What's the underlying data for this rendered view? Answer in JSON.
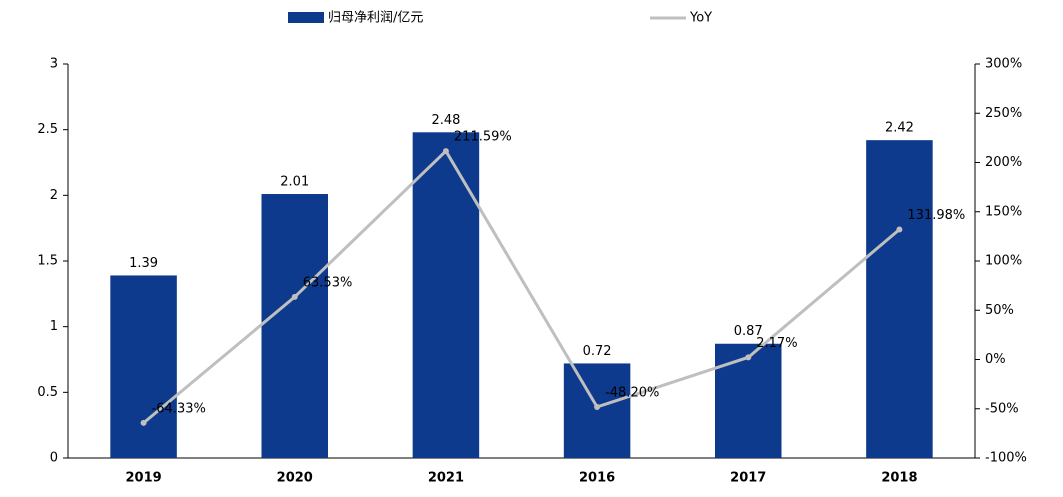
{
  "chart_data": {
    "type": "bar-line",
    "categories": [
      "2019",
      "2020",
      "2021",
      "2016",
      "2017",
      "2018"
    ],
    "series": [
      {
        "name": "归母净利润/亿元",
        "color": "#0d3a8c",
        "type": "bar",
        "values": [
          1.39,
          2.01,
          2.48,
          0.72,
          0.87,
          2.42
        ]
      },
      {
        "name": "YoY",
        "color": "#bfbfbf",
        "type": "line",
        "axis": "y2",
        "values": [
          -64.33,
          63.53,
          211.59,
          -48.2,
          2.17,
          131.98
        ],
        "value_labels": [
          "-64.33%",
          "63.53%",
          "211.59%",
          "-48.20%",
          "2.17%",
          "131.98%"
        ]
      }
    ],
    "ylim": [
      0,
      3
    ],
    "yticks": [
      0,
      0.5,
      1,
      1.5,
      2,
      2.5,
      3
    ],
    "y2lim": [
      -100,
      300
    ],
    "y2ticks": [
      {
        "value": -100,
        "label": "-100%"
      },
      {
        "value": -50,
        "label": "-50%"
      },
      {
        "value": 0,
        "label": "0%"
      },
      {
        "value": 50,
        "label": "50%"
      },
      {
        "value": 100,
        "label": "100%"
      },
      {
        "value": 150,
        "label": "150%"
      },
      {
        "value": 200,
        "label": "200%"
      },
      {
        "value": 250,
        "label": "250%"
      },
      {
        "value": 300,
        "label": "300%"
      }
    ]
  }
}
